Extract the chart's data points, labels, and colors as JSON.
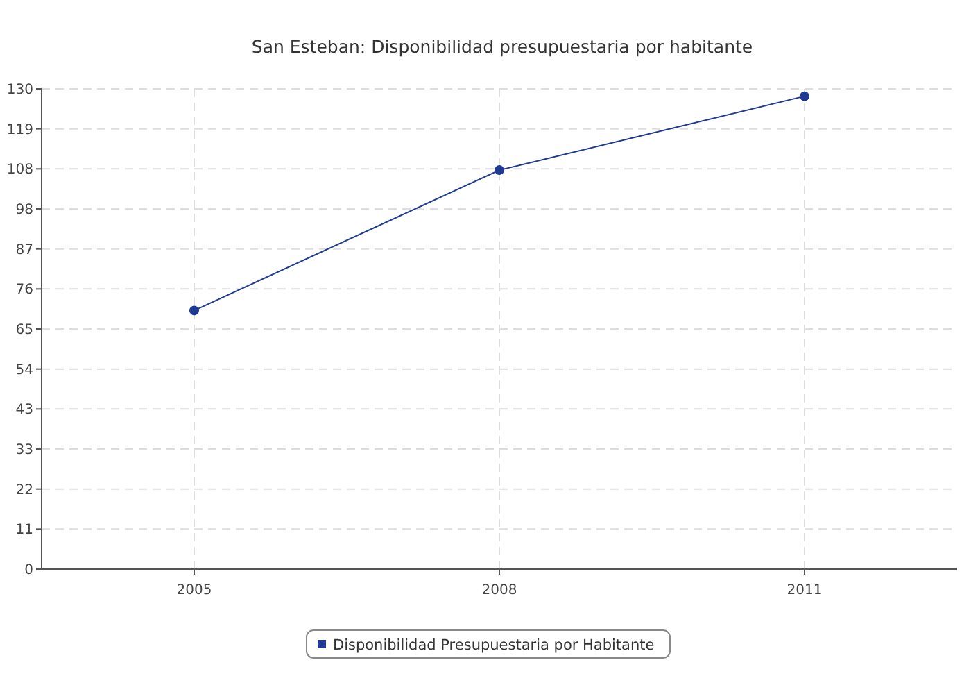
{
  "chart_data": {
    "type": "line",
    "title": "San Esteban: Disponibilidad presupuestaria por habitante",
    "categories": [
      "2005",
      "2008",
      "2011"
    ],
    "series": [
      {
        "name": "Disponibilidad Presupuestaria por Habitante",
        "color": "#1f3a93",
        "values": [
          70,
          108,
          128
        ]
      }
    ],
    "ylim": [
      0,
      130
    ],
    "yticks": [
      0,
      {
        "value": 10.8333,
        "label": "11"
      },
      {
        "value": 21.6667,
        "label": "22"
      },
      {
        "value": 32.5,
        "label": "33"
      },
      {
        "value": 43.3333,
        "label": "43"
      },
      {
        "value": 54.1667,
        "label": "54"
      },
      65,
      {
        "value": 75.8333,
        "label": "76"
      },
      {
        "value": 86.6667,
        "label": "87"
      },
      {
        "value": 97.5,
        "label": "98"
      },
      {
        "value": 108.3333,
        "label": "108"
      },
      {
        "value": 119.1667,
        "label": "119"
      },
      130
    ],
    "grid": true,
    "legend": "bottom",
    "marker": "circle",
    "line_style": "solid"
  }
}
